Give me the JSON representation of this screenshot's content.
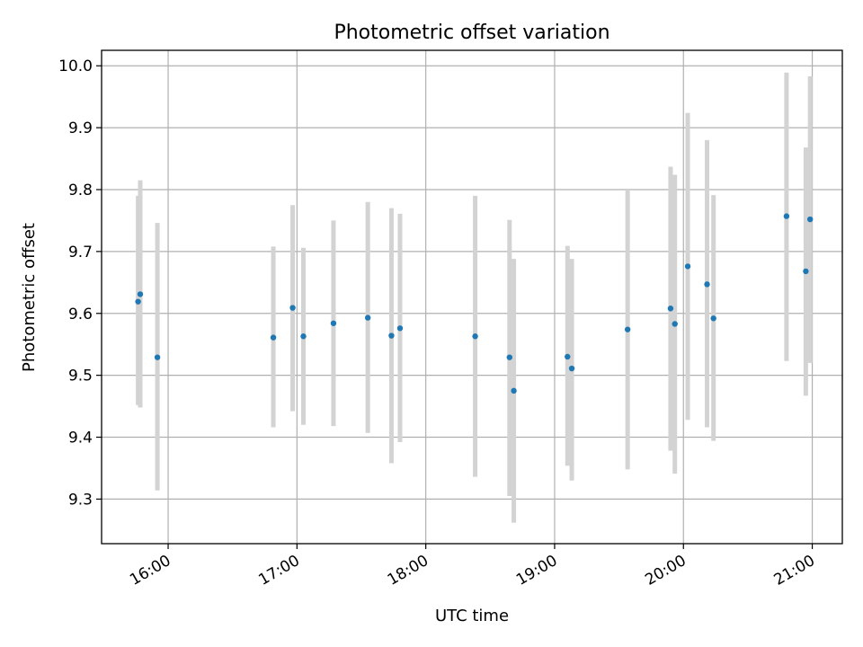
{
  "chart_data": {
    "type": "scatter",
    "title": "Photometric offset variation",
    "xlabel": "UTC time",
    "ylabel": "Photometric offset",
    "x_axis_type": "time",
    "xlim": [
      "15:29",
      "21:14"
    ],
    "ylim": [
      9.228,
      10.025
    ],
    "grid": true,
    "x_ticks": [
      "16:00",
      "17:00",
      "18:00",
      "19:00",
      "20:00",
      "21:00"
    ],
    "y_ticks": [
      "9.3",
      "9.4",
      "9.5",
      "9.6",
      "9.7",
      "9.8",
      "9.9",
      "10.0"
    ],
    "colors": {
      "marker": "#1f77b4",
      "errorbar": "#d3d3d3"
    },
    "points": [
      {
        "x": "15:46",
        "y": 9.619,
        "ylow": 9.452,
        "yhigh": 9.79
      },
      {
        "x": "15:47",
        "y": 9.631,
        "ylow": 9.448,
        "yhigh": 9.815
      },
      {
        "x": "15:55",
        "y": 9.529,
        "ylow": 9.314,
        "yhigh": 9.746
      },
      {
        "x": "16:49",
        "y": 9.561,
        "ylow": 9.416,
        "yhigh": 9.708
      },
      {
        "x": "16:58",
        "y": 9.609,
        "ylow": 9.442,
        "yhigh": 9.775
      },
      {
        "x": "17:03",
        "y": 9.563,
        "ylow": 9.42,
        "yhigh": 9.706
      },
      {
        "x": "17:17",
        "y": 9.584,
        "ylow": 9.418,
        "yhigh": 9.75
      },
      {
        "x": "17:33",
        "y": 9.593,
        "ylow": 9.407,
        "yhigh": 9.78
      },
      {
        "x": "17:44",
        "y": 9.564,
        "ylow": 9.358,
        "yhigh": 9.77
      },
      {
        "x": "17:48",
        "y": 9.576,
        "ylow": 9.392,
        "yhigh": 9.761
      },
      {
        "x": "18:23",
        "y": 9.563,
        "ylow": 9.336,
        "yhigh": 9.79
      },
      {
        "x": "18:39",
        "y": 9.529,
        "ylow": 9.305,
        "yhigh": 9.751
      },
      {
        "x": "18:41",
        "y": 9.475,
        "ylow": 9.262,
        "yhigh": 9.688
      },
      {
        "x": "19:06",
        "y": 9.53,
        "ylow": 9.354,
        "yhigh": 9.709
      },
      {
        "x": "19:08",
        "y": 9.511,
        "ylow": 9.33,
        "yhigh": 9.688
      },
      {
        "x": "19:34",
        "y": 9.574,
        "ylow": 9.348,
        "yhigh": 9.8
      },
      {
        "x": "19:54",
        "y": 9.608,
        "ylow": 9.378,
        "yhigh": 9.837
      },
      {
        "x": "19:56",
        "y": 9.583,
        "ylow": 9.341,
        "yhigh": 9.824
      },
      {
        "x": "20:02",
        "y": 9.676,
        "ylow": 9.428,
        "yhigh": 9.924
      },
      {
        "x": "20:11",
        "y": 9.647,
        "ylow": 9.416,
        "yhigh": 9.88
      },
      {
        "x": "20:14",
        "y": 9.592,
        "ylow": 9.394,
        "yhigh": 9.791
      },
      {
        "x": "20:48",
        "y": 9.757,
        "ylow": 9.523,
        "yhigh": 9.989
      },
      {
        "x": "20:57",
        "y": 9.668,
        "ylow": 9.467,
        "yhigh": 9.868
      },
      {
        "x": "20:59",
        "y": 9.752,
        "ylow": 9.52,
        "yhigh": 9.983
      }
    ]
  }
}
